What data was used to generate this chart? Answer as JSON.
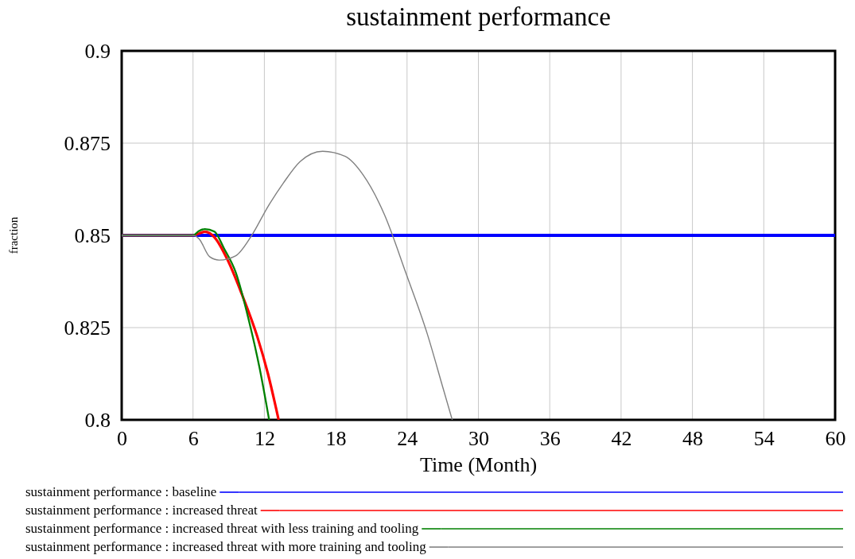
{
  "chart_data": {
    "type": "line",
    "title": "sustainment performance",
    "xlabel": "Time (Month)",
    "ylabel": "fraction",
    "xlim": [
      0,
      60
    ],
    "xticks": [
      0,
      6,
      12,
      18,
      24,
      30,
      36,
      42,
      48,
      54,
      60
    ],
    "ylim": [
      0.8,
      0.9
    ],
    "yticks": [
      0.8,
      0.825,
      0.85,
      0.875,
      0.9
    ],
    "grid": true,
    "legend": "bottom",
    "marker": "none",
    "line_style": "solid",
    "series": [
      {
        "name": "sustainment performance : baseline",
        "color": "#0000ff",
        "x": [
          0,
          60
        ],
        "values": [
          0.85,
          0.85
        ]
      },
      {
        "name": "sustainment performance : increased threat",
        "color": "#ff0000",
        "x": [
          0,
          6,
          6.5,
          7,
          7.8,
          8.9,
          10.1,
          11.4,
          12.3,
          13.2
        ],
        "values": [
          0.85,
          0.85,
          0.8505,
          0.851,
          0.8495,
          0.8434,
          0.8341,
          0.8226,
          0.8125,
          0.8
        ]
      },
      {
        "name": "sustainment performance : increased threat with less training and tooling",
        "color": "#008000",
        "x": [
          0,
          6,
          6.5,
          7,
          7.8,
          8.6,
          9.6,
          10.7,
          11.6,
          12.4
        ],
        "values": [
          0.85,
          0.85,
          0.8512,
          0.8517,
          0.851,
          0.8465,
          0.8399,
          0.8269,
          0.814,
          0.8
        ]
      },
      {
        "name": "sustainment performance : increased threat with more training and tooling",
        "color": "#808080",
        "x": [
          0,
          6,
          6.5,
          7.4,
          8.2,
          9.6,
          10.9,
          12.3,
          13.6,
          15,
          16.9,
          18.8,
          20.3,
          22.1,
          23.9,
          25.7,
          27,
          27.8
        ],
        "values": [
          0.85,
          0.85,
          0.8491,
          0.8442,
          0.8433,
          0.8445,
          0.8498,
          0.8578,
          0.8642,
          0.87,
          0.8728,
          0.8714,
          0.8664,
          0.8556,
          0.8398,
          0.8233,
          0.8089,
          0.8
        ]
      }
    ]
  }
}
